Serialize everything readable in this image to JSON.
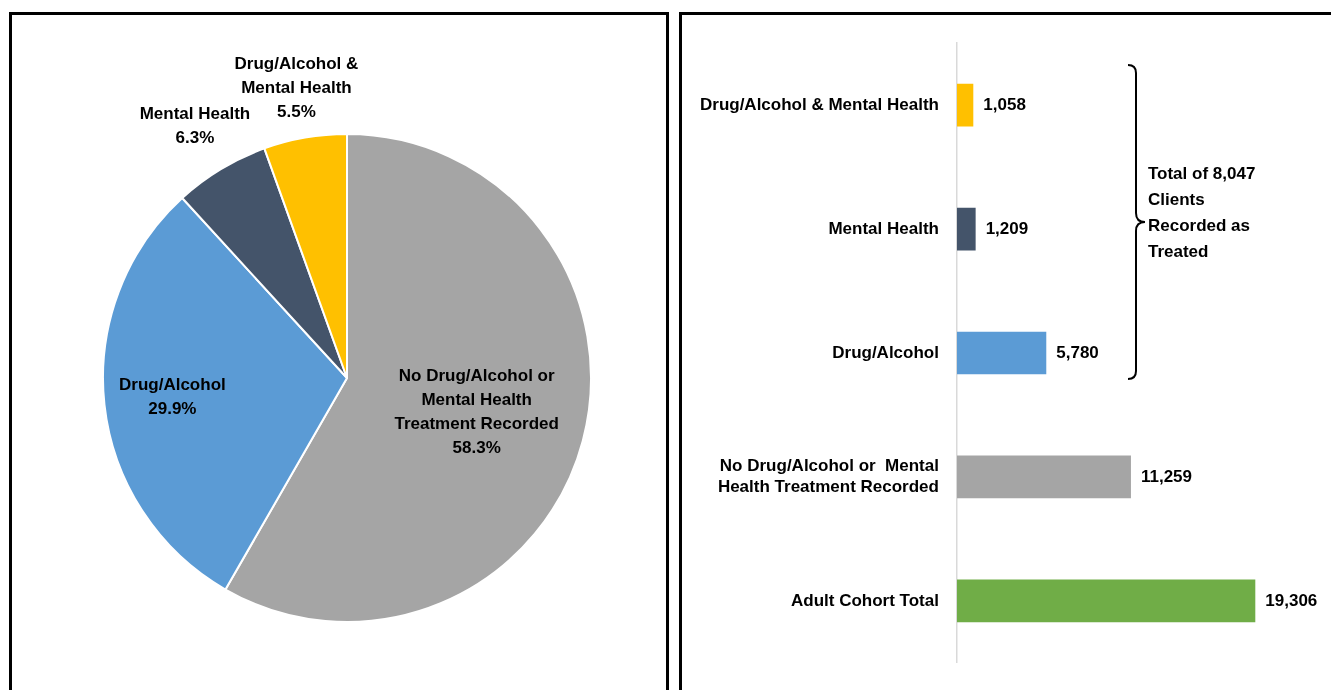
{
  "chart_data": [
    {
      "type": "pie",
      "categories": [
        "No Drug/Alcohol or Mental Health Treatment Recorded",
        "Drug/Alcohol",
        "Mental Health",
        "Drug/Alcohol & Mental Health"
      ],
      "values": [
        58.3,
        29.9,
        6.3,
        5.5
      ],
      "colors": [
        "#a5a5a5",
        "#5b9bd5",
        "#44546a",
        "#ffc000"
      ],
      "value_labels": [
        "58.3%",
        "29.9%",
        "6.3%",
        "5.5%"
      ]
    },
    {
      "type": "bar",
      "orientation": "horizontal",
      "categories": [
        "Drug/Alcohol & Mental Health",
        "Mental Health",
        "Drug/Alcohol",
        "No Drug/Alcohol or  Mental Health Treatment Recorded",
        "Adult Cohort Total"
      ],
      "values": [
        1058,
        1209,
        5780,
        11259,
        19306
      ],
      "colors": [
        "#ffc000",
        "#44546a",
        "#5b9bd5",
        "#a5a5a5",
        "#70ad47"
      ],
      "value_labels": [
        "1,058",
        "1,209",
        "5,780",
        "11,259",
        "19,306"
      ],
      "annotations": [
        "Total of 8,047 Clients Recorded as Treated"
      ]
    }
  ]
}
